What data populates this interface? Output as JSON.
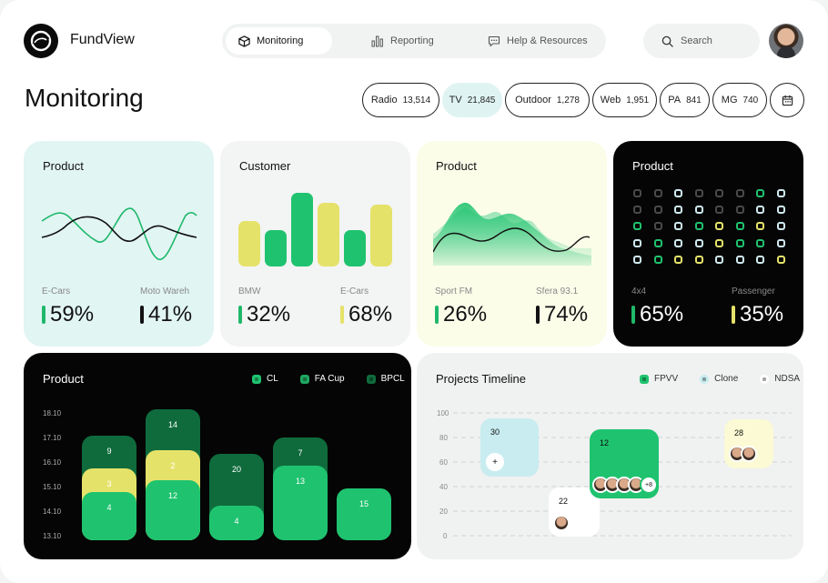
{
  "app": {
    "name": "FundView"
  },
  "nav": [
    {
      "label": "Monitoring",
      "icon": "cube-icon",
      "active": true
    },
    {
      "label": "Reporting",
      "icon": "bar-chart-icon",
      "active": false
    },
    {
      "label": "Help & Resources",
      "icon": "chat-icon",
      "active": false
    }
  ],
  "search": {
    "label": "Search"
  },
  "page": {
    "title": "Monitoring"
  },
  "channels": [
    {
      "name": "Radio",
      "value": "13,514",
      "active": false
    },
    {
      "name": "TV",
      "value": "21,845",
      "active": true
    },
    {
      "name": "Outdoor",
      "value": "1,278",
      "active": false
    },
    {
      "name": "Web",
      "value": "1,951",
      "active": false
    },
    {
      "name": "PA",
      "value": "841",
      "active": false
    },
    {
      "name": "MG",
      "value": "740",
      "active": false
    }
  ],
  "cards": {
    "product_line": {
      "title": "Product",
      "metrics": [
        {
          "label": "E-Cars",
          "value": "59%",
          "color": "#1fb86a"
        },
        {
          "label": "Moto Wareh",
          "value": "41%",
          "color": "#111111"
        }
      ]
    },
    "customer": {
      "title": "Customer",
      "metrics": [
        {
          "label": "BMW",
          "value": "32%",
          "color": "#1fb86a"
        },
        {
          "label": "E-Cars",
          "value": "68%",
          "color": "#e5e26a"
        }
      ]
    },
    "product_area": {
      "title": "Product",
      "metrics": [
        {
          "label": "Sport FM",
          "value": "26%",
          "color": "#1fb86a"
        },
        {
          "label": "Sfera 93.1",
          "value": "74%",
          "color": "#111111"
        }
      ]
    },
    "product_dots": {
      "title": "Product",
      "metrics": [
        {
          "label": "4x4",
          "value": "65%",
          "color": "#1fb86a"
        },
        {
          "label": "Passenger",
          "value": "35%",
          "color": "#e5e26a"
        }
      ]
    }
  },
  "product_chart": {
    "title": "Product",
    "legend": [
      {
        "name": "CL",
        "color": "#1fc36f"
      },
      {
        "name": "FA Cup",
        "color": "#1fa862"
      },
      {
        "name": "BPCL",
        "color": "#0f6b3c"
      }
    ],
    "y_labels": [
      "18.10",
      "17.10",
      "16.10",
      "15.10",
      "14.10",
      "13.10"
    ],
    "stacks": [
      {
        "labels": [
          "9",
          "3",
          "4"
        ]
      },
      {
        "labels": [
          "14",
          "2",
          "12"
        ]
      },
      {
        "labels": [
          "20",
          "4"
        ]
      },
      {
        "labels": [
          "7",
          "13"
        ]
      },
      {
        "labels": [
          "15"
        ]
      }
    ]
  },
  "timeline": {
    "title": "Projects Timeline",
    "legend": [
      {
        "name": "FPVV",
        "color": "#1fc36f"
      },
      {
        "name": "Clone",
        "color": "#c8ecf0"
      },
      {
        "name": "NDSA",
        "color": "#ffffff"
      }
    ],
    "y_labels": [
      "100",
      "80",
      "60",
      "40",
      "20",
      "0"
    ],
    "projects": [
      {
        "value": "30",
        "extra": "+"
      },
      {
        "value": "22"
      },
      {
        "value": "12",
        "extra": "+8"
      },
      {
        "value": "28"
      }
    ]
  }
}
